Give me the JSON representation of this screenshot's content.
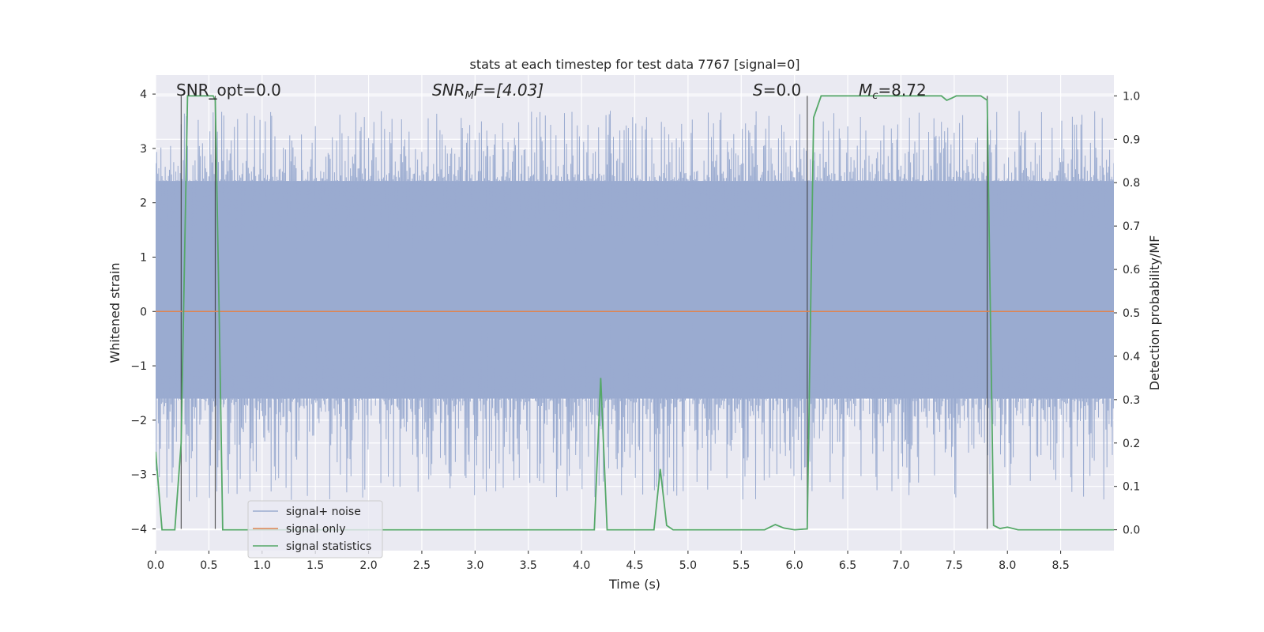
{
  "chart_data": {
    "type": "line",
    "title": "stats at each timestep for test data 7767 [signal=0]",
    "xlabel": "Time (s)",
    "ylabel_left": "Whitened strain",
    "ylabel_right": "Detection probability/MF",
    "xlim": [
      0.0,
      9.0
    ],
    "ylim_left": [
      -4.4,
      4.35
    ],
    "ylim_right": [
      -0.048,
      1.048
    ],
    "x_ticks": [
      0.0,
      0.5,
      1.0,
      1.5,
      2.0,
      2.5,
      3.0,
      3.5,
      4.0,
      4.5,
      5.0,
      5.5,
      6.0,
      6.5,
      7.0,
      7.5,
      8.0,
      8.5
    ],
    "x_tick_labels": [
      "0.0",
      "0.5",
      "1.0",
      "1.5",
      "2.0",
      "2.5",
      "3.0",
      "3.5",
      "4.0",
      "4.5",
      "5.0",
      "5.5",
      "6.0",
      "6.5",
      "7.0",
      "7.5",
      "8.0",
      "8.5"
    ],
    "y_left_ticks": [
      -4,
      -3,
      -2,
      -1,
      0,
      1,
      2,
      3,
      4
    ],
    "y_left_tick_labels": [
      "−4",
      "−3",
      "−2",
      "−1",
      "0",
      "1",
      "2",
      "3",
      "4"
    ],
    "y_right_ticks": [
      0.0,
      0.1,
      0.2,
      0.3,
      0.4,
      0.5,
      0.6,
      0.7,
      0.8,
      0.9,
      1.0
    ],
    "y_right_tick_labels": [
      "0.0",
      "0.1",
      "0.2",
      "0.3",
      "0.4",
      "0.5",
      "0.6",
      "0.7",
      "0.8",
      "0.9",
      "1.0"
    ],
    "annotations": {
      "snr_opt": "SNR_opt=0.0",
      "snr_mf_name": "SNR",
      "snr_mf_sub": "M",
      "snr_mf_tail": "F=[4.03]",
      "s_name": "S",
      "s_tail": "=0.0",
      "mc_name": "M",
      "mc_sub": "c",
      "mc_tail": "=8.72"
    },
    "series": [
      {
        "name": "signal+ noise",
        "color": "#9aabd0",
        "note": "whitened strain noise, approx. amplitude -3.5 to 3.6",
        "envelope_upper": 2.4,
        "envelope_lower": -1.6
      },
      {
        "name": "signal only",
        "color": "#dd8452",
        "x": [
          0.0,
          9.0
        ],
        "y": [
          0.0,
          0.0
        ]
      },
      {
        "name": "signal statistics",
        "color": "#55a868",
        "x": [
          0.0,
          0.06,
          0.18,
          0.24,
          0.3,
          0.36,
          0.54,
          0.56,
          0.6,
          0.63,
          1.0,
          2.0,
          3.0,
          4.0,
          4.12,
          4.18,
          4.24,
          4.3,
          4.6,
          4.68,
          4.74,
          4.8,
          4.86,
          5.0,
          5.5,
          5.72,
          5.82,
          5.9,
          6.0,
          6.12,
          6.18,
          6.25,
          6.5,
          7.0,
          7.38,
          7.43,
          7.48,
          7.52,
          7.58,
          7.75,
          7.81,
          7.87,
          7.93,
          8.0,
          8.1,
          8.2,
          8.5,
          9.0
        ],
        "y": [
          0.18,
          0.0,
          0.0,
          0.2,
          1.0,
          1.0,
          1.0,
          0.99,
          0.45,
          0.0,
          0.0,
          0.0,
          0.0,
          0.0,
          0.0,
          0.35,
          0.0,
          0.0,
          0.0,
          0.0,
          0.14,
          0.01,
          0.0,
          0.0,
          0.0,
          0.0,
          0.012,
          0.004,
          0.0,
          0.002,
          0.95,
          1.0,
          1.0,
          1.0,
          1.0,
          0.99,
          0.995,
          1.0,
          1.0,
          1.0,
          0.99,
          0.01,
          0.003,
          0.006,
          0.0,
          0.0,
          0.0,
          0.0
        ]
      }
    ],
    "vertical_markers": [
      {
        "x": 0.24,
        "y_top": 1.0
      },
      {
        "x": 0.56,
        "y_top": 1.0
      },
      {
        "x": 6.12,
        "y_top": 1.0
      },
      {
        "x": 7.81,
        "y_top": 1.0
      }
    ],
    "legend": {
      "placement": "lower-left",
      "entries": [
        "signal+ noise",
        "signal only",
        "signal statistics"
      ]
    },
    "grid": true
  }
}
